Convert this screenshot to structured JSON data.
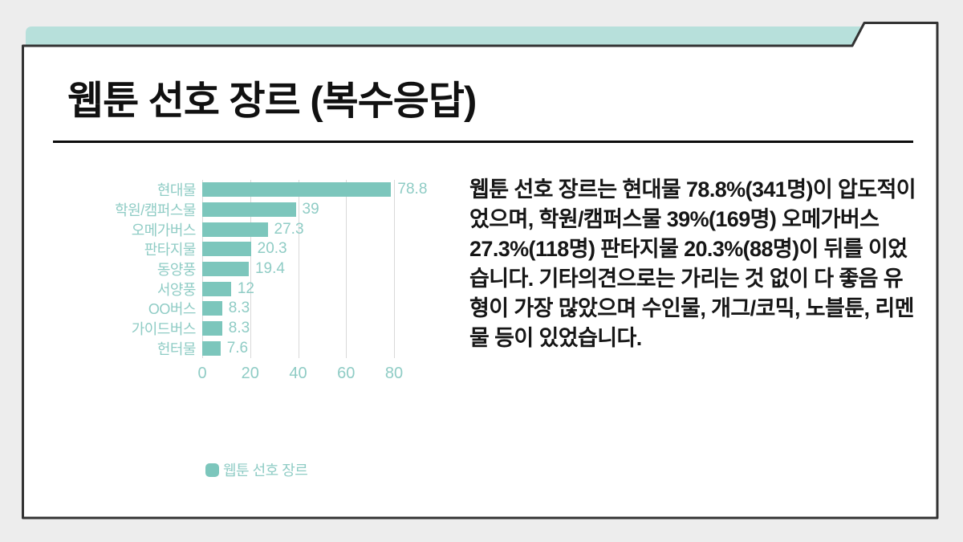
{
  "slide": {
    "title": "웹툰 선호 장르 (복수응답)",
    "description": "웹툰 선호 장르는 현대물 78.8%(341명)이 압도적이었으며, 학원/캠퍼스물 39%(169명) 오메가버스 27.3%(118명) 판타지물 20.3%(88명)이 뒤를 이었습니다. 기타의견으로는 가리는 것 없이 다 좋음 유형이 가장 많았으며 수인물, 개그/코믹, 노블툰, 리멘물 등이 있었습니다."
  },
  "chart_data": {
    "type": "bar",
    "orientation": "horizontal",
    "title": "",
    "categories": [
      "현대물",
      "학원/캠퍼스물",
      "오메가버스",
      "판타지물",
      "동양풍",
      "서양풍",
      "OO버스",
      "가이드버스",
      "헌터물"
    ],
    "values": [
      78.8,
      39,
      27.3,
      20.3,
      19.4,
      12,
      8.3,
      8.3,
      7.6
    ],
    "value_labels": [
      "78.8",
      "39",
      "27.3",
      "20.3",
      "19.4",
      "12",
      "8.3",
      "8.3",
      "7.6"
    ],
    "xticks": [
      0,
      20,
      40,
      60,
      80
    ],
    "xlim": [
      0,
      80
    ],
    "grid": "vertical",
    "legend": {
      "label": "웹툰 선호 장르",
      "position": "bottom-left"
    }
  },
  "colors": {
    "background": "#ededed",
    "card_fill": "#ffffff",
    "card_border": "#333333",
    "accent_bar": "#b7e0db",
    "chart_bar": "#7cc6bc",
    "chart_text": "#8fccc5",
    "gridline": "#d9d9d9",
    "title_text": "#111111",
    "body_text": "#161616"
  }
}
